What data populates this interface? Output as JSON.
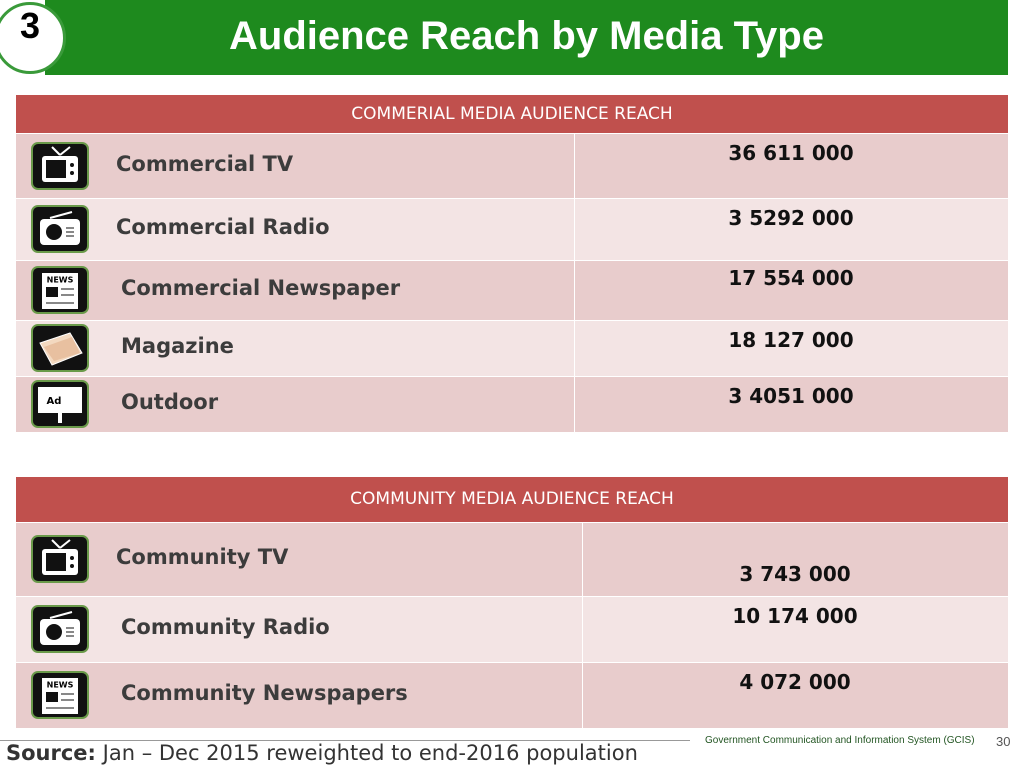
{
  "header": {
    "badge": "3",
    "title": "Audience Reach by Media Type"
  },
  "icons": {
    "newspaper": "NEWS",
    "outdoor": "Ad"
  },
  "tables": [
    {
      "title": "COMMERIAL MEDIA AUDIENCE REACH",
      "rows": [
        [
          "Commercial TV",
          "36 611 000"
        ],
        [
          "Commercial Radio",
          "3 5292 000"
        ],
        [
          "Commercial Newspaper",
          "17 554 000"
        ],
        [
          "Magazine",
          "18 127 000"
        ],
        [
          "Outdoor",
          "3 4051 000"
        ]
      ]
    },
    {
      "title": "COMMUNITY MEDIA AUDIENCE REACH",
      "rows": [
        [
          "Community TV",
          "3 743 000"
        ],
        [
          "Community Radio",
          "10 174 000"
        ],
        [
          "Community Newspapers",
          "4 072 000"
        ]
      ]
    }
  ],
  "footer": {
    "source_label": "Source:",
    "source_text": "Jan – Dec 2015 reweighted to end-2016 population",
    "org": "Government Communication and Information System (GCIS)",
    "page": "30"
  }
}
